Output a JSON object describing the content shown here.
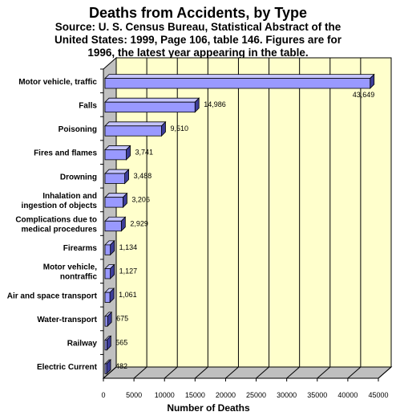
{
  "chart_data": {
    "type": "bar",
    "orientation": "horizontal",
    "title": "Deaths from Accidents, by Type",
    "subtitle": "Source: U. S. Census Bureau, Statistical Abstract of the United States: 1999, Page 106, table 146.  Figures are for 1996, the latest year appearing in the table.",
    "xlabel": "Number of Deaths",
    "ylabel": "",
    "xlim": [
      0,
      45000
    ],
    "xticks": [
      0,
      5000,
      10000,
      15000,
      20000,
      25000,
      30000,
      35000,
      40000,
      45000
    ],
    "grid": true,
    "categories": [
      "Motor vehicle, traffic",
      "Falls",
      "Poisoning",
      "Fires and flames",
      "Drowning",
      "Inhalation and ingestion of objects",
      "Complications due to medical procedures",
      "Firearms",
      "Motor vehicle, nontraffic",
      "Air and space transport",
      "Water-transport",
      "Railway",
      "Electric Current"
    ],
    "category_lines": [
      [
        "Motor vehicle, traffic"
      ],
      [
        "Falls"
      ],
      [
        "Poisoning"
      ],
      [
        "Fires and flames"
      ],
      [
        "Drowning"
      ],
      [
        "Inhalation and",
        "ingestion of objects"
      ],
      [
        "Complications due to",
        "medical procedures"
      ],
      [
        "Firearms"
      ],
      [
        "Motor vehicle,",
        "nontraffic"
      ],
      [
        "Air and space transport"
      ],
      [
        "Water-transport"
      ],
      [
        "Railway"
      ],
      [
        "Electric Current"
      ]
    ],
    "values": [
      43649,
      14986,
      9510,
      3741,
      3488,
      3206,
      2929,
      1134,
      1127,
      1061,
      675,
      565,
      482
    ],
    "value_labels": [
      "43,649",
      "14,986",
      "9,510",
      "3,741",
      "3,488",
      "3,206",
      "2,929",
      "1,134",
      "1,127",
      "1,061",
      "675",
      "565",
      "482"
    ],
    "colors": {
      "bar_front": "#9999ff",
      "bar_top": "#c4c4ff",
      "bar_side": "#3d3d99",
      "plot_back": "#ffffcc",
      "floor": "#bfbfbf",
      "grid": "#000000"
    }
  }
}
